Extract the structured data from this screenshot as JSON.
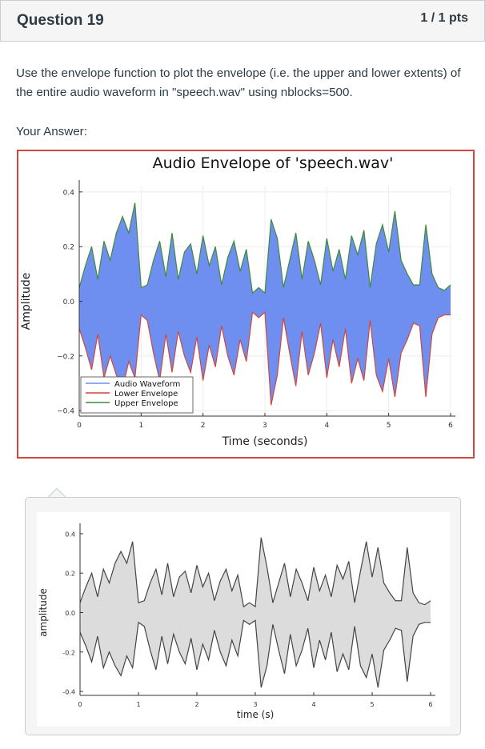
{
  "question": {
    "title": "Question 19",
    "points": "1 / 1 pts",
    "text": "Use the envelope function to plot the envelope (i.e. the upper and lower extents) of the entire audio waveform in \"speech.wav\" using nblocks=500.",
    "your_answer_label": "Your Answer:"
  },
  "colors": {
    "answer_border": "#d0453f",
    "waveform": "#6f8ff0",
    "lower_envelope": "#d1473c",
    "upper_envelope": "#3f8a3a",
    "comment_fill": "#dcdcdc",
    "comment_line": "#444444"
  },
  "chart_data": [
    {
      "type": "area",
      "title": "Audio Envelope of 'speech.wav'",
      "xlabel": "Time (seconds)",
      "ylabel": "Amplitude",
      "xlim": [
        0,
        6
      ],
      "ylim": [
        -0.42,
        0.42
      ],
      "xticks": [
        0,
        1,
        2,
        3,
        4,
        5,
        6
      ],
      "yticks": [
        0.4,
        0.2,
        0.0,
        -0.2,
        -0.4
      ],
      "ytick_labels": [
        "0.4",
        "0.2",
        "0.0",
        "−0.2",
        "−0.4"
      ],
      "grid": true,
      "legend_position": "bottom-left",
      "series": [
        {
          "name": "Audio Waveform"
        },
        {
          "name": "Lower Envelope"
        },
        {
          "name": "Upper Envelope"
        }
      ],
      "x": [
        0.0,
        0.1,
        0.2,
        0.3,
        0.4,
        0.5,
        0.6,
        0.7,
        0.8,
        0.9,
        1.0,
        1.1,
        1.2,
        1.3,
        1.4,
        1.5,
        1.6,
        1.7,
        1.8,
        1.9,
        2.0,
        2.1,
        2.2,
        2.3,
        2.4,
        2.5,
        2.6,
        2.7,
        2.8,
        2.9,
        3.0,
        3.1,
        3.2,
        3.3,
        3.4,
        3.5,
        3.6,
        3.7,
        3.8,
        3.9,
        4.0,
        4.1,
        4.2,
        4.3,
        4.4,
        4.5,
        4.6,
        4.7,
        4.8,
        4.9,
        5.0,
        5.1,
        5.2,
        5.3,
        5.4,
        5.5,
        5.6,
        5.7,
        5.8,
        5.9,
        6.0
      ],
      "upper": [
        0.05,
        0.13,
        0.2,
        0.08,
        0.22,
        0.15,
        0.25,
        0.31,
        0.25,
        0.36,
        0.05,
        0.06,
        0.15,
        0.22,
        0.09,
        0.25,
        0.08,
        0.18,
        0.21,
        0.1,
        0.24,
        0.13,
        0.2,
        0.06,
        0.16,
        0.22,
        0.11,
        0.19,
        0.03,
        0.05,
        0.03,
        0.3,
        0.23,
        0.05,
        0.15,
        0.25,
        0.08,
        0.22,
        0.15,
        0.06,
        0.23,
        0.11,
        0.19,
        0.08,
        0.24,
        0.17,
        0.26,
        0.05,
        0.21,
        0.28,
        0.18,
        0.33,
        0.15,
        0.1,
        0.06,
        0.06,
        0.28,
        0.1,
        0.05,
        0.04,
        0.06
      ],
      "lower": [
        -0.1,
        -0.17,
        -0.25,
        -0.12,
        -0.28,
        -0.2,
        -0.27,
        -0.32,
        -0.22,
        -0.28,
        -0.05,
        -0.07,
        -0.19,
        -0.29,
        -0.12,
        -0.26,
        -0.11,
        -0.2,
        -0.26,
        -0.13,
        -0.29,
        -0.16,
        -0.24,
        -0.09,
        -0.2,
        -0.27,
        -0.14,
        -0.22,
        -0.04,
        -0.06,
        -0.04,
        -0.38,
        -0.27,
        -0.06,
        -0.19,
        -0.31,
        -0.11,
        -0.27,
        -0.19,
        -0.08,
        -0.28,
        -0.14,
        -0.24,
        -0.1,
        -0.3,
        -0.21,
        -0.29,
        -0.07,
        -0.27,
        -0.33,
        -0.21,
        -0.35,
        -0.19,
        -0.14,
        -0.08,
        -0.09,
        -0.35,
        -0.12,
        -0.06,
        -0.05,
        -0.05
      ]
    },
    {
      "type": "area",
      "title": "",
      "xlabel": "time (s)",
      "ylabel": "amplitude",
      "xlim": [
        0,
        6
      ],
      "ylim": [
        -0.42,
        0.42
      ],
      "xticks": [
        0,
        1,
        2,
        3,
        4,
        5,
        6
      ],
      "yticks": [
        0.4,
        0.2,
        0.0,
        -0.2,
        -0.4
      ],
      "ytick_labels": [
        "0.4",
        "0.2",
        "0.0",
        "-0.2",
        "-0.4"
      ],
      "grid": false,
      "x": [
        0.0,
        0.1,
        0.2,
        0.3,
        0.4,
        0.5,
        0.6,
        0.7,
        0.8,
        0.9,
        1.0,
        1.1,
        1.2,
        1.3,
        1.4,
        1.5,
        1.6,
        1.7,
        1.8,
        1.9,
        2.0,
        2.1,
        2.2,
        2.3,
        2.4,
        2.5,
        2.6,
        2.7,
        2.8,
        2.9,
        3.0,
        3.1,
        3.2,
        3.3,
        3.4,
        3.5,
        3.6,
        3.7,
        3.8,
        3.9,
        4.0,
        4.1,
        4.2,
        4.3,
        4.4,
        4.5,
        4.6,
        4.7,
        4.8,
        4.9,
        5.0,
        5.1,
        5.2,
        5.3,
        5.4,
        5.5,
        5.6,
        5.7,
        5.8,
        5.9,
        6.0
      ],
      "upper": [
        0.05,
        0.13,
        0.2,
        0.08,
        0.22,
        0.15,
        0.25,
        0.31,
        0.25,
        0.36,
        0.05,
        0.06,
        0.15,
        0.22,
        0.09,
        0.25,
        0.08,
        0.18,
        0.21,
        0.1,
        0.24,
        0.13,
        0.2,
        0.06,
        0.16,
        0.22,
        0.11,
        0.19,
        0.03,
        0.05,
        0.03,
        0.38,
        0.23,
        0.05,
        0.15,
        0.25,
        0.08,
        0.22,
        0.15,
        0.06,
        0.23,
        0.11,
        0.19,
        0.08,
        0.24,
        0.17,
        0.26,
        0.05,
        0.21,
        0.36,
        0.18,
        0.33,
        0.15,
        0.1,
        0.06,
        0.06,
        0.33,
        0.1,
        0.05,
        0.04,
        0.06
      ],
      "lower": [
        -0.1,
        -0.17,
        -0.25,
        -0.12,
        -0.28,
        -0.2,
        -0.27,
        -0.32,
        -0.22,
        -0.28,
        -0.05,
        -0.07,
        -0.19,
        -0.29,
        -0.12,
        -0.26,
        -0.11,
        -0.2,
        -0.26,
        -0.13,
        -0.29,
        -0.16,
        -0.24,
        -0.09,
        -0.2,
        -0.27,
        -0.14,
        -0.22,
        -0.04,
        -0.06,
        -0.04,
        -0.38,
        -0.27,
        -0.06,
        -0.19,
        -0.31,
        -0.11,
        -0.27,
        -0.19,
        -0.08,
        -0.28,
        -0.14,
        -0.24,
        -0.1,
        -0.3,
        -0.21,
        -0.29,
        -0.07,
        -0.27,
        -0.33,
        -0.21,
        -0.38,
        -0.19,
        -0.14,
        -0.08,
        -0.09,
        -0.35,
        -0.12,
        -0.06,
        -0.05,
        -0.05
      ]
    }
  ]
}
